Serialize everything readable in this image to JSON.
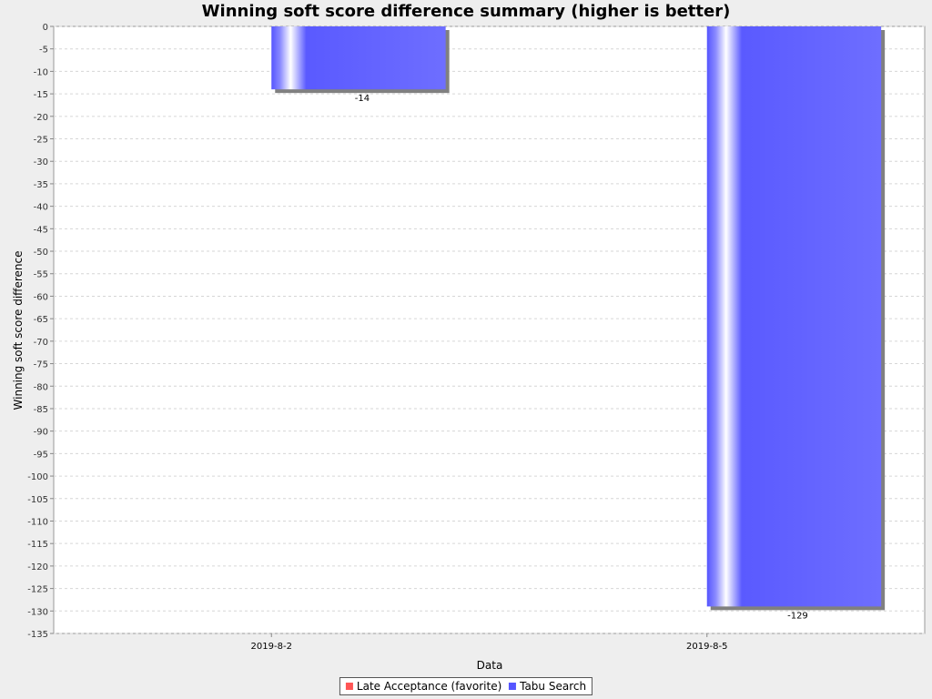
{
  "chart_data": {
    "type": "bar",
    "title": "Winning soft score difference summary (higher is better)",
    "xlabel": "Data",
    "ylabel": "Winning soft score difference",
    "categories": [
      "2019-8-2",
      "2019-8-5"
    ],
    "series": [
      {
        "name": "Late Acceptance (favorite)",
        "color": "#ff5555",
        "values": [
          0,
          0
        ]
      },
      {
        "name": "Tabu Search",
        "color": "#5555ff",
        "values": [
          -14,
          -129
        ]
      }
    ],
    "ylim": [
      -135,
      0
    ],
    "y_tick_step": 5,
    "grid": true,
    "legend_position": "bottom"
  }
}
